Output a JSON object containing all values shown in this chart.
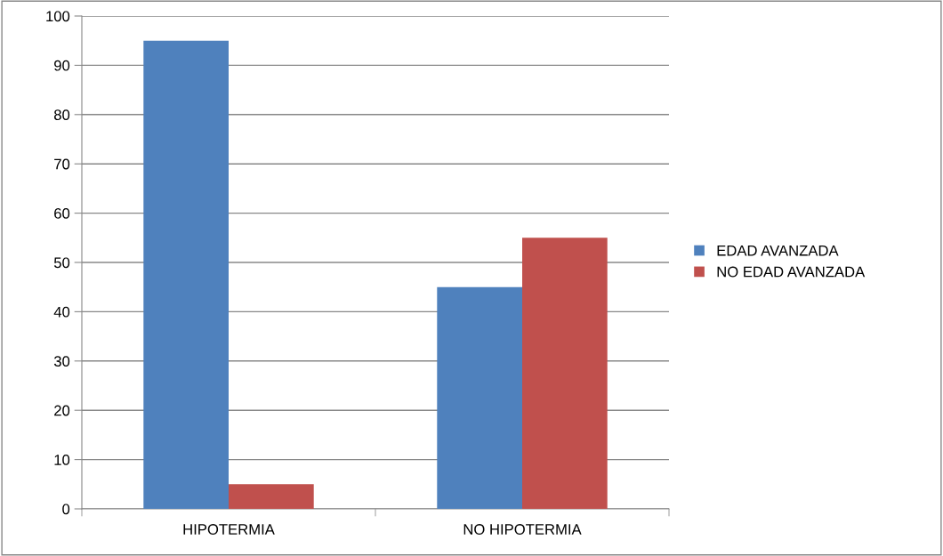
{
  "chart_data": {
    "type": "bar",
    "categories": [
      "HIPOTERMIA",
      "NO HIPOTERMIA"
    ],
    "series": [
      {
        "name": "EDAD AVANZADA",
        "color": "#4f81bd",
        "values": [
          95,
          45
        ]
      },
      {
        "name": "NO EDAD AVANZADA",
        "color": "#c0504d",
        "values": [
          5,
          55
        ]
      }
    ],
    "ylim": [
      0,
      100
    ],
    "yticks": [
      0,
      10,
      20,
      30,
      40,
      50,
      60,
      70,
      80,
      90,
      100
    ],
    "grid": "y",
    "legend": "right"
  }
}
